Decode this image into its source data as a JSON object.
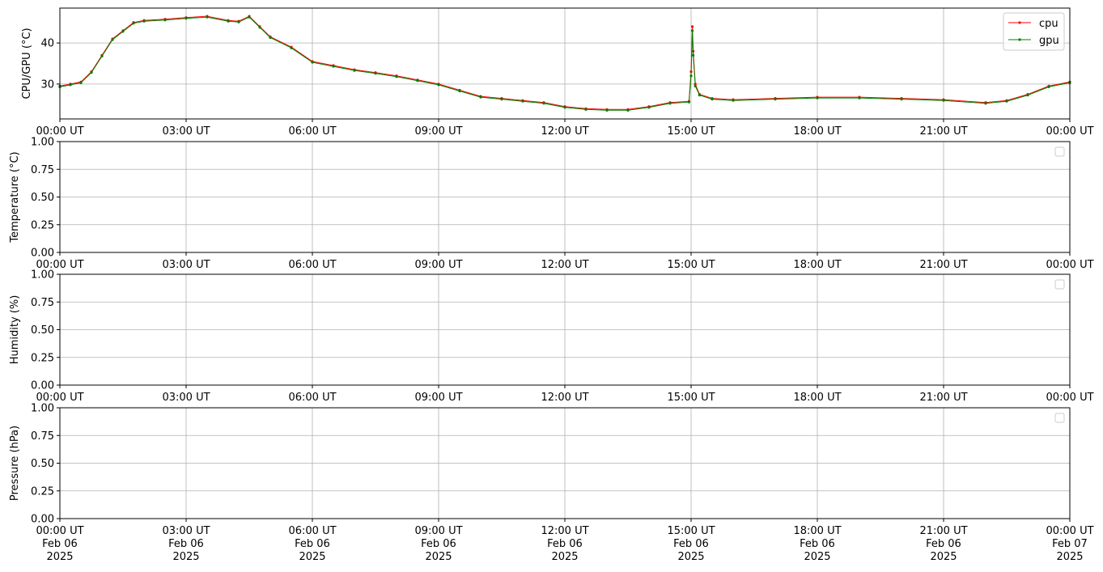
{
  "chart_data": [
    {
      "type": "line",
      "ylabel": "CPU/GPU (°C)",
      "ylim": [
        21.5,
        48.5
      ],
      "yticks": [
        30,
        40
      ],
      "ytick_labels": [
        "30",
        "40"
      ],
      "xlim": [
        0,
        24
      ],
      "xticks": [
        0,
        3,
        6,
        9,
        12,
        15,
        18,
        21,
        24
      ],
      "xtick_labels": [
        "00:00 UT",
        "03:00 UT",
        "06:00 UT",
        "09:00 UT",
        "12:00 UT",
        "15:00 UT",
        "18:00 UT",
        "21:00 UT",
        "00:00 UT"
      ],
      "grid": true,
      "legend": "top-right",
      "x_unit": "hours UT, Feb 06 2025",
      "series": [
        {
          "name": "cpu",
          "color": "#ff0000",
          "x": [
            0.0,
            0.25,
            0.5,
            0.75,
            1.0,
            1.25,
            1.5,
            1.75,
            2.0,
            2.5,
            3.0,
            3.5,
            4.0,
            4.25,
            4.5,
            4.75,
            5.0,
            5.5,
            6.0,
            6.5,
            7.0,
            7.5,
            8.0,
            8.5,
            9.0,
            9.5,
            10.0,
            10.5,
            11.0,
            11.5,
            12.0,
            12.5,
            13.0,
            13.5,
            14.0,
            14.5,
            14.95,
            15.0,
            15.03,
            15.05,
            15.1,
            15.2,
            15.5,
            16.0,
            17.0,
            18.0,
            19.0,
            20.0,
            21.0,
            22.0,
            22.5,
            23.0,
            23.5,
            24.0
          ],
          "y": [
            29.5,
            30.0,
            30.5,
            33.0,
            37.0,
            41.0,
            43.0,
            45.0,
            45.5,
            45.8,
            46.2,
            46.5,
            45.5,
            45.3,
            46.5,
            44.0,
            41.5,
            39.0,
            35.5,
            34.5,
            33.5,
            32.8,
            32.0,
            31.0,
            30.0,
            28.5,
            27.0,
            26.5,
            26.0,
            25.5,
            24.5,
            24.0,
            23.8,
            23.8,
            24.5,
            25.5,
            25.8,
            33.0,
            44.0,
            38.0,
            30.0,
            27.5,
            26.5,
            26.2,
            26.5,
            26.8,
            26.8,
            26.5,
            26.2,
            25.5,
            26.0,
            27.5,
            29.5,
            30.5
          ]
        },
        {
          "name": "gpu",
          "color": "#008000",
          "x": [
            0.0,
            0.25,
            0.5,
            0.75,
            1.0,
            1.25,
            1.5,
            1.75,
            2.0,
            2.5,
            3.0,
            3.5,
            4.0,
            4.25,
            4.5,
            4.75,
            5.0,
            5.5,
            6.0,
            6.5,
            7.0,
            7.5,
            8.0,
            8.5,
            9.0,
            9.5,
            10.0,
            10.5,
            11.0,
            11.5,
            12.0,
            12.5,
            13.0,
            13.5,
            14.0,
            14.5,
            14.95,
            15.0,
            15.03,
            15.05,
            15.1,
            15.2,
            15.5,
            16.0,
            17.0,
            18.0,
            19.0,
            20.0,
            21.0,
            22.0,
            22.5,
            23.0,
            23.5,
            24.0
          ],
          "y": [
            29.3,
            29.8,
            30.3,
            32.8,
            36.8,
            40.8,
            42.8,
            44.8,
            45.3,
            45.6,
            46.0,
            46.3,
            45.3,
            45.1,
            46.3,
            43.8,
            41.3,
            38.8,
            35.3,
            34.3,
            33.3,
            32.6,
            31.8,
            30.8,
            29.8,
            28.3,
            26.8,
            26.3,
            25.8,
            25.3,
            24.3,
            23.8,
            23.6,
            23.6,
            24.3,
            25.3,
            25.6,
            32.0,
            43.0,
            37.0,
            29.5,
            27.3,
            26.3,
            26.0,
            26.3,
            26.6,
            26.6,
            26.3,
            26.0,
            25.3,
            25.8,
            27.3,
            29.3,
            30.3
          ]
        }
      ]
    },
    {
      "type": "line",
      "ylabel": "Temperature (°C)",
      "ylim": [
        0,
        1
      ],
      "yticks": [
        0,
        0.25,
        0.5,
        0.75,
        1.0
      ],
      "ytick_labels": [
        "0.00",
        "0.25",
        "0.50",
        "0.75",
        "1.00"
      ],
      "xlim": [
        0,
        24
      ],
      "xticks": [
        0,
        3,
        6,
        9,
        12,
        15,
        18,
        21,
        24
      ],
      "xtick_labels": [
        "00:00 UT",
        "03:00 UT",
        "06:00 UT",
        "09:00 UT",
        "12:00 UT",
        "15:00 UT",
        "18:00 UT",
        "21:00 UT",
        "00:00 UT"
      ],
      "grid": true,
      "legend": "top-right (empty)",
      "series": []
    },
    {
      "type": "line",
      "ylabel": "Humidity (%)",
      "ylim": [
        0,
        1
      ],
      "yticks": [
        0,
        0.25,
        0.5,
        0.75,
        1.0
      ],
      "ytick_labels": [
        "0.00",
        "0.25",
        "0.50",
        "0.75",
        "1.00"
      ],
      "xlim": [
        0,
        24
      ],
      "xticks": [
        0,
        3,
        6,
        9,
        12,
        15,
        18,
        21,
        24
      ],
      "xtick_labels": [
        "00:00 UT",
        "03:00 UT",
        "06:00 UT",
        "09:00 UT",
        "12:00 UT",
        "15:00 UT",
        "18:00 UT",
        "21:00 UT",
        "00:00 UT"
      ],
      "grid": true,
      "legend": "top-right (empty)",
      "series": []
    },
    {
      "type": "line",
      "ylabel": "Pressure (hPa)",
      "ylim": [
        0,
        1
      ],
      "yticks": [
        0,
        0.25,
        0.5,
        0.75,
        1.0
      ],
      "ytick_labels": [
        "0.00",
        "0.25",
        "0.50",
        "0.75",
        "1.00"
      ],
      "xlim": [
        0,
        24
      ],
      "xticks": [
        0,
        3,
        6,
        9,
        12,
        15,
        18,
        21,
        24
      ],
      "xtick_labels": [
        "00:00 UT",
        "03:00 UT",
        "06:00 UT",
        "09:00 UT",
        "12:00 UT",
        "15:00 UT",
        "18:00 UT",
        "21:00 UT",
        "00:00 UT"
      ],
      "xtick_date_labels": [
        "Feb 06",
        "Feb 06",
        "Feb 06",
        "Feb 06",
        "Feb 06",
        "Feb 06",
        "Feb 06",
        "Feb 06",
        "Feb 07"
      ],
      "xtick_year_labels": [
        "2025",
        "2025",
        "2025",
        "2025",
        "2025",
        "2025",
        "2025",
        "2025",
        "2025"
      ],
      "grid": true,
      "legend": "top-right (empty)",
      "series": []
    }
  ]
}
